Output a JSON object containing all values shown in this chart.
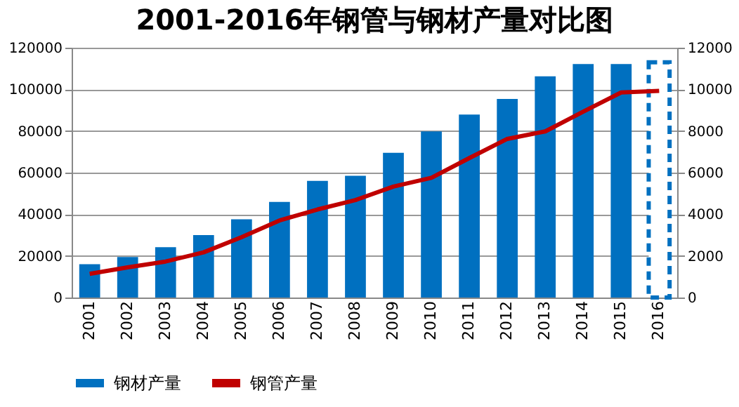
{
  "chart_data": {
    "type": "bar",
    "title": "2001-2016年钢管与钢材产量对比图",
    "categories": [
      "2001",
      "2002",
      "2003",
      "2004",
      "2005",
      "2006",
      "2007",
      "2008",
      "2009",
      "2010",
      "2011",
      "2012",
      "2013",
      "2014",
      "2015",
      "2016"
    ],
    "series": [
      {
        "name": "钢材产量",
        "color": "#0070c0",
        "values": [
          16000,
          19500,
          24200,
          30000,
          37600,
          45900,
          56000,
          58500,
          69500,
          79800,
          87900,
          95400,
          106300,
          112200,
          112200,
          null
        ]
      },
      {
        "color": "#0070c0",
        "line_style": "dashed",
        "values": [
          null,
          null,
          null,
          null,
          null,
          null,
          null,
          null,
          null,
          null,
          null,
          null,
          null,
          null,
          null,
          113000
        ]
      },
      {
        "name": "钢管产量",
        "type": "line",
        "axis": "y2",
        "color": "#c00000",
        "values": [
          1140,
          1450,
          1730,
          2170,
          2900,
          3700,
          4230,
          4680,
          5330,
          5750,
          6700,
          7620,
          7980,
          8930,
          9850,
          9930
        ]
      }
    ],
    "ylim": [
      0,
      120000
    ],
    "yticks": [
      0,
      20000,
      40000,
      60000,
      80000,
      100000,
      120000
    ],
    "y2lim": [
      0,
      12000
    ],
    "y2ticks": [
      0,
      2000,
      4000,
      6000,
      8000,
      10000,
      12000
    ],
    "grid": "y",
    "legend": "bottom",
    "marker": "none"
  }
}
